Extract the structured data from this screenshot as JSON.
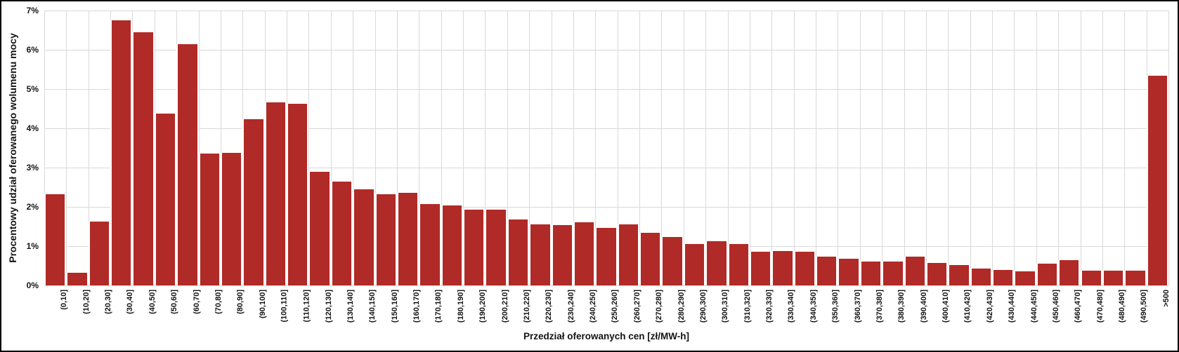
{
  "chart_data": {
    "type": "bar",
    "title": "",
    "xlabel": "Przedział oferowanych cen [zł/MW-h]",
    "ylabel": "Procentowy udział oferowanego wolumenu mocy",
    "categories": [
      "(0,10]",
      "(10,20]",
      "(20,30]",
      "(30,40]",
      "(40,50]",
      "(50,60]",
      "(60,70]",
      "(70,80]",
      "(80,90]",
      "(90,100]",
      "(100,110]",
      "(110,120]",
      "(120,130]",
      "(130,140]",
      "(140,150]",
      "(150,160]",
      "(160,170]",
      "(170,180]",
      "(180,190]",
      "(190,200]",
      "(200,210]",
      "(210,220]",
      "(220,230]",
      "(230,240]",
      "(240,250]",
      "(250,260]",
      "(260,270]",
      "(270,280]",
      "(280,290]",
      "(290,300]",
      "(300,310]",
      "(310,320]",
      "(320,330]",
      "(330,340]",
      "(340,350]",
      "(350,360]",
      "(360,370]",
      "(370,380]",
      "(380,390]",
      "(390,400]",
      "(400,410]",
      "(410,420]",
      "(420,430]",
      "(430,440]",
      "(440,450]",
      "(450,460]",
      "(460,470]",
      "(470,480]",
      "(480,490]",
      "(490,500]",
      ">500"
    ],
    "values": [
      2.33,
      0.32,
      1.62,
      6.75,
      6.44,
      4.37,
      6.14,
      3.36,
      3.38,
      4.23,
      4.66,
      4.62,
      2.89,
      2.64,
      2.44,
      2.33,
      2.36,
      2.08,
      2.04,
      1.92,
      1.92,
      1.68,
      1.55,
      1.53,
      1.6,
      1.47,
      1.55,
      1.34,
      1.24,
      1.05,
      1.13,
      1.06,
      0.86,
      0.87,
      0.85,
      0.73,
      0.68,
      0.6,
      0.6,
      0.73,
      0.57,
      0.51,
      0.42,
      0.39,
      0.35,
      0.56,
      0.64,
      0.37,
      0.37,
      0.37,
      5.34
    ],
    "ytick_labels": [
      "0%",
      "1%",
      "2%",
      "3%",
      "4%",
      "5%",
      "6%",
      "7%"
    ],
    "ylim": [
      0,
      7
    ],
    "ytick_step": 1,
    "grid": "both",
    "legend": "none",
    "bar_color": "#b02a27",
    "grid_color": "#d9d9d9",
    "text_color": "#141414",
    "background_color": "#ffffff",
    "frame_border_color": "#000000"
  }
}
